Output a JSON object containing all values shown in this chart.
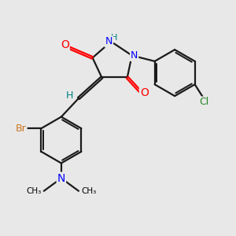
{
  "background_color": "#e8e8e8",
  "atom_colors": {
    "C": "#000000",
    "H": "#008080",
    "N": "#0000ff",
    "O": "#ff0000",
    "Br": "#cc7722",
    "Cl": "#228822"
  },
  "bond_color": "#1a1a1a",
  "bond_width": 1.6,
  "font_size": 9,
  "figsize": [
    3.0,
    3.0
  ],
  "dpi": 100
}
